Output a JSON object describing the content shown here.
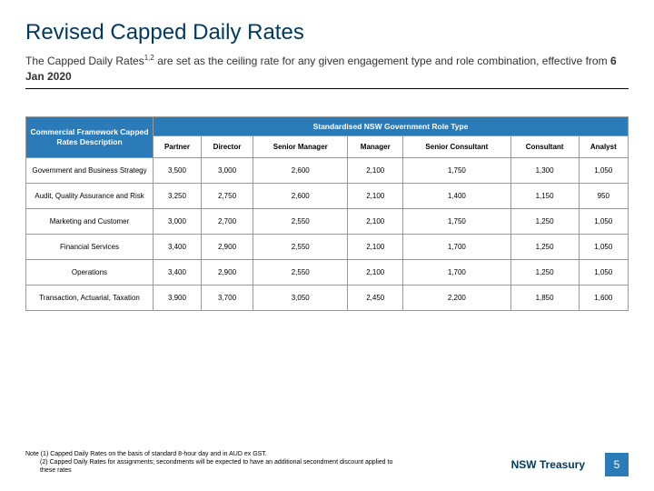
{
  "title": "Revised Capped Daily Rates",
  "subtitle_pre": "The Capped Daily Rates",
  "subtitle_sup": "1,2",
  "subtitle_mid": " are set as the ceiling rate for any given engagement type and role combination, effective from ",
  "subtitle_bold": "6 Jan 2020",
  "table": {
    "row_header_label": "Commercial Framework Capped Rates Description",
    "spanner_label": "Standardised NSW Government Role Type",
    "columns": [
      "Partner",
      "Director",
      "Senior Manager",
      "Manager",
      "Senior Consultant",
      "Consultant",
      "Analyst"
    ],
    "rows": [
      {
        "label": "Government and Business Strategy",
        "vals": [
          "3,500",
          "3,000",
          "2,600",
          "2,100",
          "1,750",
          "1,300",
          "1,050"
        ]
      },
      {
        "label": "Audit, Quality Assurance and Risk",
        "vals": [
          "3,250",
          "2,750",
          "2,600",
          "2,100",
          "1,400",
          "1,150",
          "950"
        ]
      },
      {
        "label": "Marketing and Customer",
        "vals": [
          "3,000",
          "2,700",
          "2,550",
          "2,100",
          "1,750",
          "1,250",
          "1,050"
        ]
      },
      {
        "label": "Financial Services",
        "vals": [
          "3,400",
          "2,900",
          "2,550",
          "2,100",
          "1,700",
          "1,250",
          "1,050"
        ]
      },
      {
        "label": "Operations",
        "vals": [
          "3,400",
          "2,900",
          "2,550",
          "2,100",
          "1,700",
          "1,250",
          "1,050"
        ]
      },
      {
        "label": "Transaction, Actuarial, Taxation",
        "vals": [
          "3,900",
          "3,700",
          "3,050",
          "2,450",
          "2,200",
          "1,850",
          "1,600"
        ]
      }
    ]
  },
  "notes": {
    "n1": "Note (1) Capped Daily Rates on the basis of standard 8-hour day and in AUD ex GST.",
    "n2": "(2) Capped Daily Rates for assignments; secondments will be expected to have an additional secondment discount applied to these rates"
  },
  "footer_org": "NSW Treasury",
  "page_number": "5",
  "colors": {
    "brand_blue": "#2b7bb9",
    "dark_navy": "#003a63"
  }
}
